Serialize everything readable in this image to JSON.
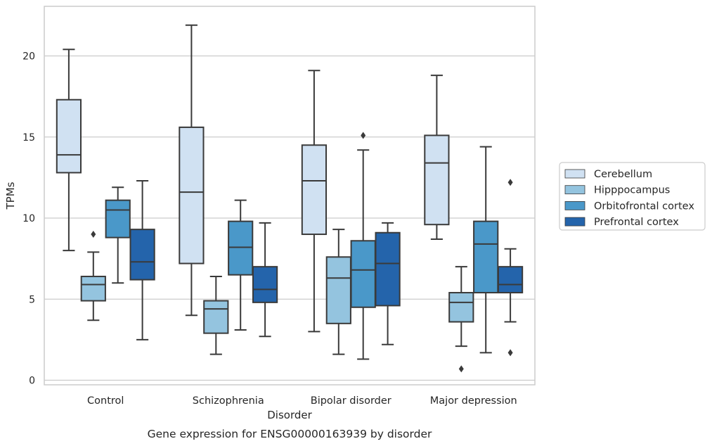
{
  "chart_data": {
    "type": "box",
    "title": "",
    "caption": "Gene expression for ENSG00000163939 by disorder",
    "xlabel": "Disorder",
    "ylabel": "TPMs",
    "ylim": [
      -0.3,
      23.0
    ],
    "yticks": [
      0,
      5,
      10,
      15,
      20
    ],
    "grid": "horizontal",
    "legend_position": "right",
    "categories": [
      "Control",
      "Schizophrenia",
      "Bipolar disorder",
      "Major depression"
    ],
    "series": [
      {
        "name": "Cerebellum",
        "color": "#d0e1f2",
        "boxes": [
          {
            "whisker_low": 8.0,
            "q1": 12.8,
            "median": 13.9,
            "q3": 17.3,
            "whisker_high": 20.4,
            "outliers": []
          },
          {
            "whisker_low": 4.0,
            "q1": 7.2,
            "median": 11.6,
            "q3": 15.6,
            "whisker_high": 21.9,
            "outliers": []
          },
          {
            "whisker_low": 3.0,
            "q1": 9.0,
            "median": 12.3,
            "q3": 14.5,
            "whisker_high": 19.1,
            "outliers": []
          },
          {
            "whisker_low": 8.7,
            "q1": 9.6,
            "median": 13.4,
            "q3": 15.1,
            "whisker_high": 18.8,
            "outliers": []
          }
        ]
      },
      {
        "name": "Hipppocampus",
        "color": "#94c4df",
        "boxes": [
          {
            "whisker_low": 3.7,
            "q1": 4.9,
            "median": 5.9,
            "q3": 6.4,
            "whisker_high": 7.9,
            "outliers": [
              9.0
            ]
          },
          {
            "whisker_low": 1.6,
            "q1": 2.9,
            "median": 4.4,
            "q3": 4.9,
            "whisker_high": 6.4,
            "outliers": []
          },
          {
            "whisker_low": 1.6,
            "q1": 3.5,
            "median": 6.3,
            "q3": 7.6,
            "whisker_high": 9.3,
            "outliers": []
          },
          {
            "whisker_low": 2.1,
            "q1": 3.6,
            "median": 4.8,
            "q3": 5.4,
            "whisker_high": 7.0,
            "outliers": [
              0.7
            ]
          }
        ]
      },
      {
        "name": "Orbitofrontal cortex",
        "color": "#4a98c9",
        "boxes": [
          {
            "whisker_low": 6.0,
            "q1": 8.8,
            "median": 10.5,
            "q3": 11.1,
            "whisker_high": 11.9,
            "outliers": []
          },
          {
            "whisker_low": 3.1,
            "q1": 6.5,
            "median": 8.2,
            "q3": 9.8,
            "whisker_high": 11.1,
            "outliers": []
          },
          {
            "whisker_low": 1.3,
            "q1": 4.5,
            "median": 6.8,
            "q3": 8.6,
            "whisker_high": 14.2,
            "outliers": [
              15.1
            ]
          },
          {
            "whisker_low": 1.7,
            "q1": 5.4,
            "median": 8.4,
            "q3": 9.8,
            "whisker_high": 14.4,
            "outliers": []
          }
        ]
      },
      {
        "name": "Prefrontal cortex",
        "color": "#2464ab",
        "boxes": [
          {
            "whisker_low": 2.5,
            "q1": 6.2,
            "median": 7.3,
            "q3": 9.3,
            "whisker_high": 12.3,
            "outliers": []
          },
          {
            "whisker_low": 2.7,
            "q1": 4.8,
            "median": 5.6,
            "q3": 7.0,
            "whisker_high": 9.7,
            "outliers": []
          },
          {
            "whisker_low": 2.2,
            "q1": 4.6,
            "median": 7.2,
            "q3": 9.1,
            "whisker_high": 9.7,
            "outliers": []
          },
          {
            "whisker_low": 3.6,
            "q1": 5.4,
            "median": 5.9,
            "q3": 7.0,
            "whisker_high": 8.1,
            "outliers": [
              12.2,
              1.7
            ]
          }
        ]
      }
    ]
  }
}
